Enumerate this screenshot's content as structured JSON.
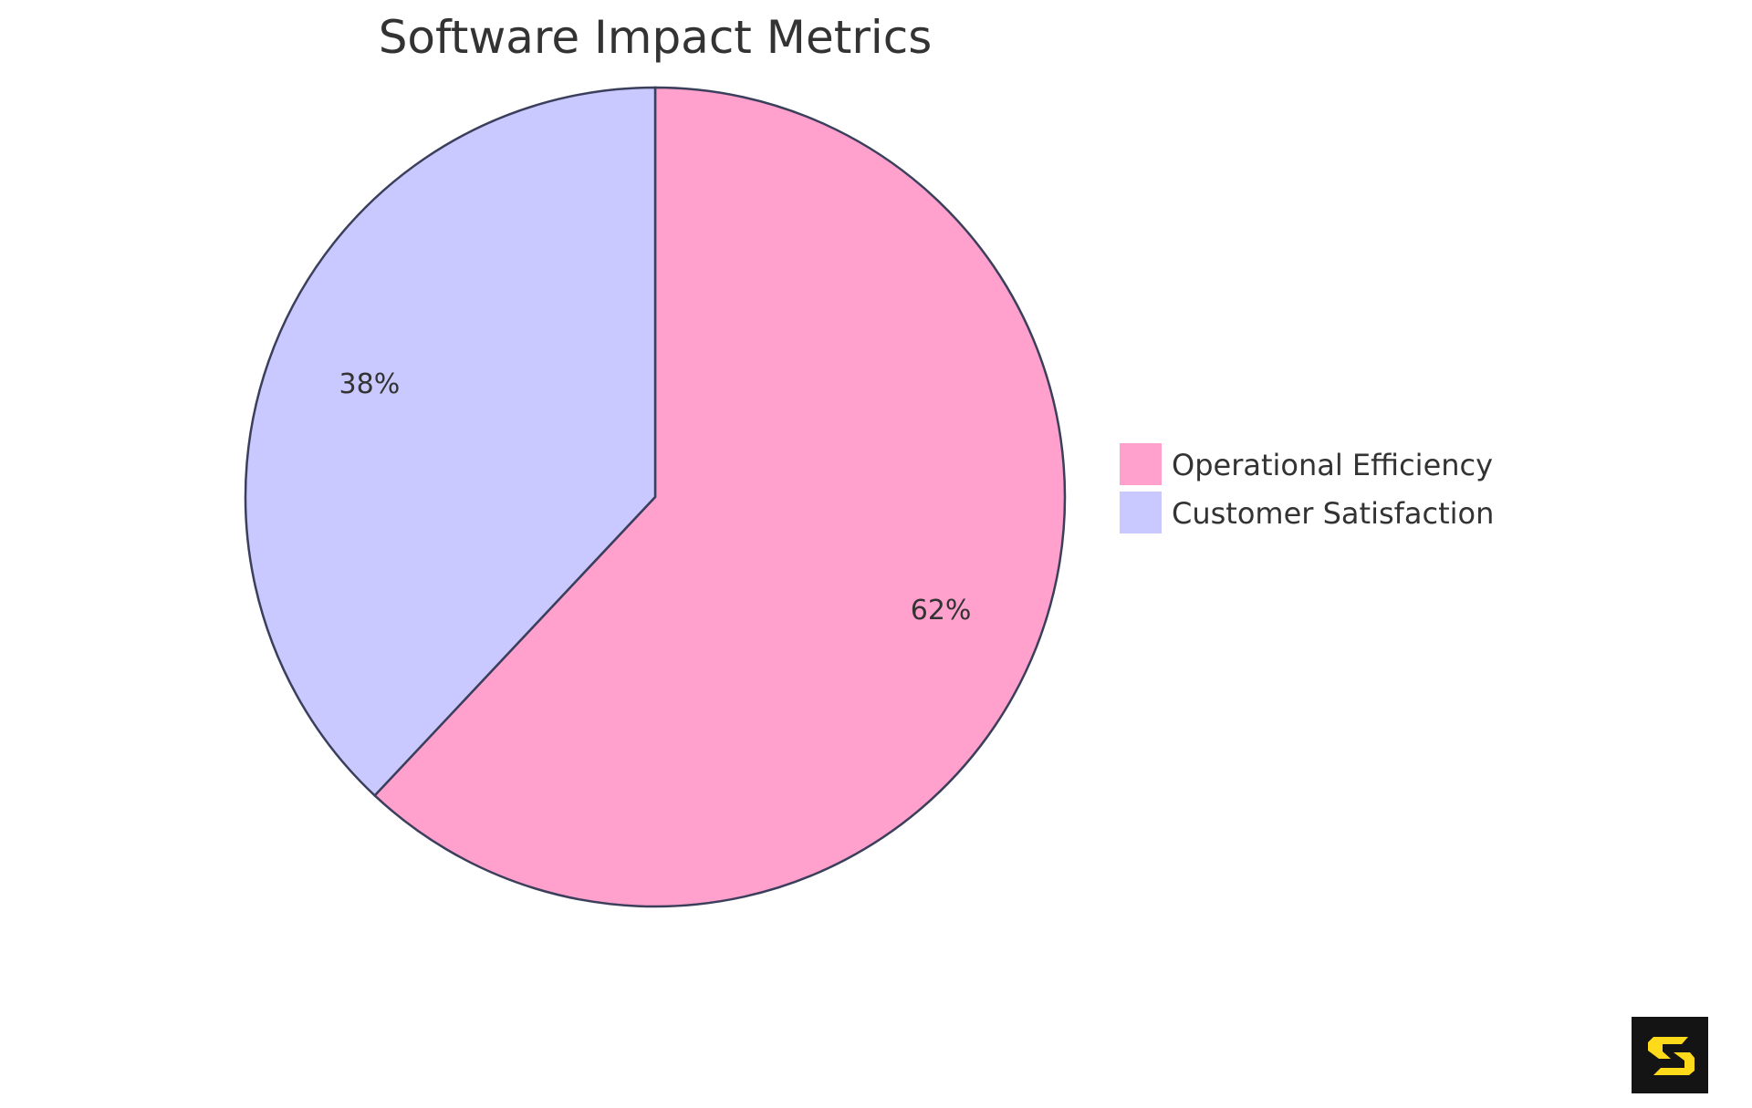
{
  "chart_data": {
    "type": "pie",
    "title": "Software Impact Metrics",
    "series": [
      {
        "name": "Operational Efficiency",
        "value": 62,
        "label": "62%",
        "color": "#FFA1CC"
      },
      {
        "name": "Customer Satisfaction",
        "value": 38,
        "label": "38%",
        "color": "#C9C9FF"
      }
    ],
    "start_angle": "top",
    "direction": "clockwise",
    "legend_position": "right",
    "stroke_color": "#3B3F5C"
  },
  "logo": {
    "name": "s-logo-icon",
    "background": "#141414",
    "color": "#FFDA1A"
  }
}
